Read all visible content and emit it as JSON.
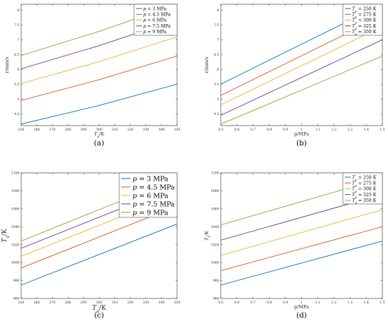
{
  "colors": [
    "#0072BD",
    "#D95319",
    "#EDB120",
    "#7E2F8E",
    "#77AC30"
  ],
  "chart_data": [
    {
      "type": "line",
      "panel_label": "(a)",
      "xlabel": "Ta/K",
      "ylabel": "r/mm/s",
      "xlim": [
        250,
        350
      ],
      "ylim": [
        4.1,
        8.2
      ],
      "xticks": [
        "250",
        "260",
        "270",
        "280",
        "290",
        "300",
        "310",
        "320",
        "330",
        "340",
        "350"
      ],
      "yticks": [
        "4.5",
        "5",
        "5.5",
        "6",
        "6.5",
        "7",
        "7.5",
        "8"
      ],
      "legend_position": "top-right",
      "series": [
        {
          "name": "p = 3 MPa",
          "x": [
            250,
            300,
            350
          ],
          "y": [
            4.15,
            4.78,
            5.5
          ]
        },
        {
          "name": "p = 4.5 MPa",
          "x": [
            250,
            300,
            350
          ],
          "y": [
            4.95,
            5.65,
            6.45
          ]
        },
        {
          "name": "p = 6 MPa",
          "x": [
            250,
            300,
            350
          ],
          "y": [
            5.52,
            6.26,
            7.1
          ]
        },
        {
          "name": "p = 7.5 MPa",
          "x": [
            250,
            300,
            350
          ],
          "y": [
            6.02,
            6.8,
            7.68
          ]
        },
        {
          "name": "p = 9 MPa",
          "x": [
            250,
            300,
            350
          ],
          "y": [
            6.47,
            7.28,
            8.2
          ]
        }
      ]
    },
    {
      "type": "line",
      "panel_label": "(b)",
      "xlabel": "p/MPa",
      "ylabel": "r/mm/s",
      "xlim": [
        0.5,
        1.5
      ],
      "ylim": [
        4.1,
        8.2
      ],
      "xticks": [
        "0.5",
        "0.6",
        "0.7",
        "0.8",
        "0.9",
        "1",
        "1.1",
        "1.2",
        "1.3",
        "1.4",
        "1.5"
      ],
      "yticks": [
        "4.5",
        "5",
        "5.5",
        "6",
        "6.5",
        "7",
        "7.5",
        "8"
      ],
      "legend_position": "top-right",
      "series": [
        {
          "name": "Ta = 250 K",
          "x": [
            0.5,
            1.5
          ],
          "y": [
            5.5,
            8.2
          ]
        },
        {
          "name": "Ta = 275 K",
          "x": [
            0.5,
            1.5
          ],
          "y": [
            5.12,
            7.8
          ]
        },
        {
          "name": "Ta = 300 K",
          "x": [
            0.5,
            1.5
          ],
          "y": [
            4.8,
            7.45
          ]
        },
        {
          "name": "Ta = 325 K",
          "x": [
            0.5,
            1.5
          ],
          "y": [
            4.45,
            7.0
          ]
        },
        {
          "name": "Ta = 350 K",
          "x": [
            0.5,
            1.5
          ],
          "y": [
            4.15,
            6.45
          ]
        }
      ]
    },
    {
      "type": "line",
      "panel_label": "(c)",
      "xlabel": "Ta/K",
      "ylabel": "Ts/K",
      "xlim": [
        250,
        350
      ],
      "ylim": [
        960,
        1100
      ],
      "xticks": [
        "250",
        "260",
        "270",
        "280",
        "290",
        "300",
        "310",
        "320",
        "330",
        "340",
        "350"
      ],
      "yticks": [
        "960",
        "980",
        "1000",
        "1020",
        "1040",
        "1060",
        "1080",
        "1100"
      ],
      "legend_position": "top-right",
      "series": [
        {
          "name": "p = 3 MPa",
          "x": [
            250,
            350
          ],
          "y": [
            975,
            1043
          ]
        },
        {
          "name": "p = 4.5 MPa",
          "x": [
            250,
            350
          ],
          "y": [
            994,
            1063
          ]
        },
        {
          "name": "p = 6 MPa",
          "x": [
            250,
            350
          ],
          "y": [
            1007,
            1076
          ]
        },
        {
          "name": "p = 7.5 MPa",
          "x": [
            250,
            350
          ],
          "y": [
            1016,
            1085
          ]
        },
        {
          "name": "p = 9 MPa",
          "x": [
            250,
            350
          ],
          "y": [
            1024,
            1094
          ]
        }
      ]
    },
    {
      "type": "line",
      "panel_label": "(d)",
      "xlabel": "p/MPa",
      "ylabel": "Ts/K",
      "xlim": [
        0.5,
        1.5
      ],
      "ylim": [
        960,
        1100
      ],
      "xticks": [
        "0.5",
        "0.6",
        "0.7",
        "0.8",
        "0.9",
        "1",
        "1.1",
        "1.2",
        "1.3",
        "1.4",
        "1.5"
      ],
      "yticks": [
        "960",
        "980",
        "1000",
        "1020",
        "1040",
        "1060",
        "1080",
        "1100"
      ],
      "legend_position": "top-left",
      "series": [
        {
          "name": "Ta = 250 K",
          "x": [
            0.5,
            1.5
          ],
          "y": [
            975,
            1024
          ]
        },
        {
          "name": "Ta = 275 K",
          "x": [
            0.5,
            1.5
          ],
          "y": [
            991,
            1040
          ]
        },
        {
          "name": "Ta = 300 K",
          "x": [
            0.5,
            1.5
          ],
          "y": [
            1008,
            1059
          ]
        },
        {
          "name": "Ta = 325 K",
          "x": [
            0.5,
            1.5
          ],
          "y": [
            1025,
            1076
          ]
        },
        {
          "name": "Ta = 350 K",
          "x": [
            0.5,
            1.5
          ],
          "y": [
            1042,
            1094
          ]
        }
      ]
    }
  ]
}
